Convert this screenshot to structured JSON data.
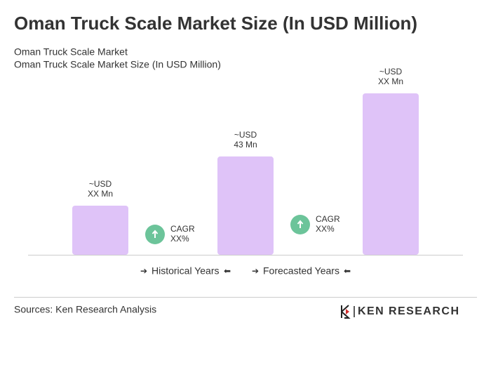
{
  "header": {
    "title": "Oman Truck Scale Market Size (In USD Million)",
    "subtitle": "Oman Truck Scale Market",
    "subtitle2": "Oman Truck Scale Market Size (In USD Million)"
  },
  "chart_data": {
    "type": "bar",
    "categories": [
      null,
      null,
      null
    ],
    "values": [
      21.5,
      43,
      70.6
    ],
    "value_labels": [
      "~USD\nXX Mn",
      "~USD\n43 Mn",
      "~USD\nXX Mn"
    ],
    "color": "#dfc3f8",
    "cagr": [
      {
        "label": "CAGR",
        "value": "XX%"
      },
      {
        "label": "CAGR",
        "value": "XX%"
      }
    ],
    "cagr_color": "#6cc49a",
    "legend": [
      "Historical Years",
      "Forecasted Years"
    ]
  },
  "footer": {
    "source": "Sources: Ken Research Analysis",
    "logo": "KEN RESEARCH"
  }
}
